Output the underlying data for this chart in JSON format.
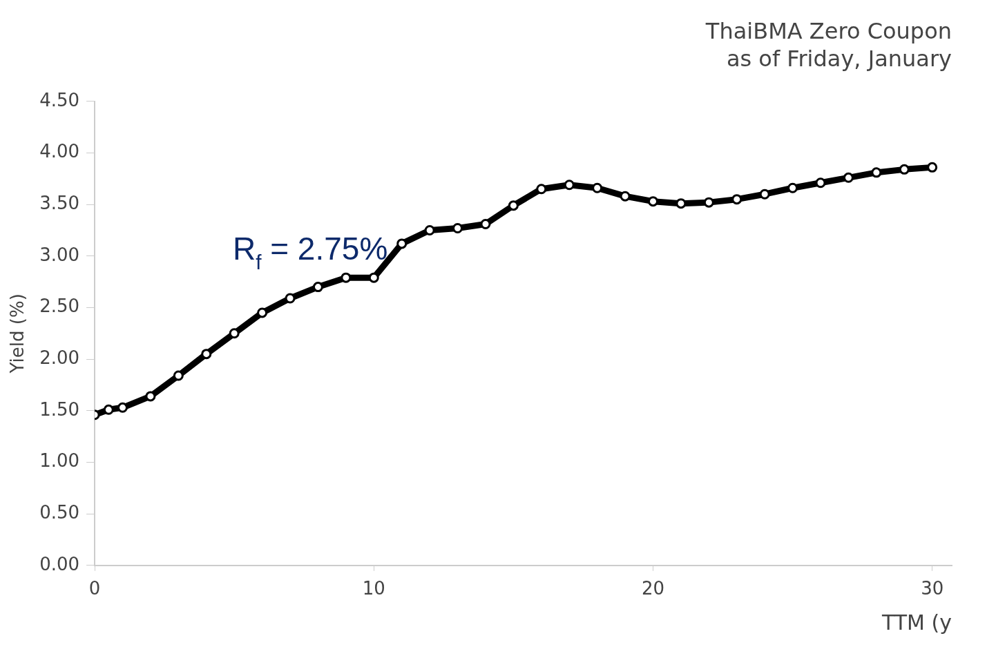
{
  "chart_data": {
    "type": "line",
    "title": "ThaiBMA Zero Coupon",
    "subtitle": "as of Friday, January",
    "xlabel": "TTM (y",
    "ylabel": "Yield (%)",
    "x": [
      0,
      0.5,
      1,
      2,
      3,
      4,
      5,
      6,
      7,
      8,
      9,
      10,
      11,
      12,
      13,
      14,
      15,
      16,
      17,
      18,
      19,
      20,
      21,
      22,
      23,
      24,
      25,
      26,
      27,
      28,
      29,
      30
    ],
    "series": [
      {
        "color": "#000000",
        "values": [
          1.46,
          1.51,
          1.53,
          1.64,
          1.84,
          2.05,
          2.25,
          2.45,
          2.59,
          2.7,
          2.79,
          2.79,
          3.12,
          3.25,
          3.27,
          3.31,
          3.49,
          3.65,
          3.69,
          3.66,
          3.58,
          3.53,
          3.51,
          3.52,
          3.55,
          3.6,
          3.66,
          3.71,
          3.76,
          3.81,
          3.84,
          3.86
        ]
      }
    ],
    "xlim": [
      0,
      30.7
    ],
    "xticks": [
      0,
      10,
      20,
      30
    ],
    "ylim": [
      0,
      4.5
    ],
    "yticks": [
      {
        "value": 0,
        "label": "0.00"
      },
      {
        "value": 0.5,
        "label": "0.50"
      },
      {
        "value": 1,
        "label": "1.00"
      },
      {
        "value": 1.5,
        "label": "1.50"
      },
      {
        "value": 2,
        "label": "2.00"
      },
      {
        "value": 2.5,
        "label": "2.50"
      },
      {
        "value": 3,
        "label": "3.00"
      },
      {
        "value": 3.5,
        "label": "3.50"
      },
      {
        "value": 4,
        "label": "4.00"
      },
      {
        "value": 4.5,
        "label": "4.50"
      }
    ],
    "annotations": [
      {
        "text": "R$_{f}$ = 2.75%",
        "x": 10,
        "y": 2.79
      }
    ],
    "grid": false,
    "legend": false,
    "marker": "circle",
    "line_style": "solid"
  }
}
